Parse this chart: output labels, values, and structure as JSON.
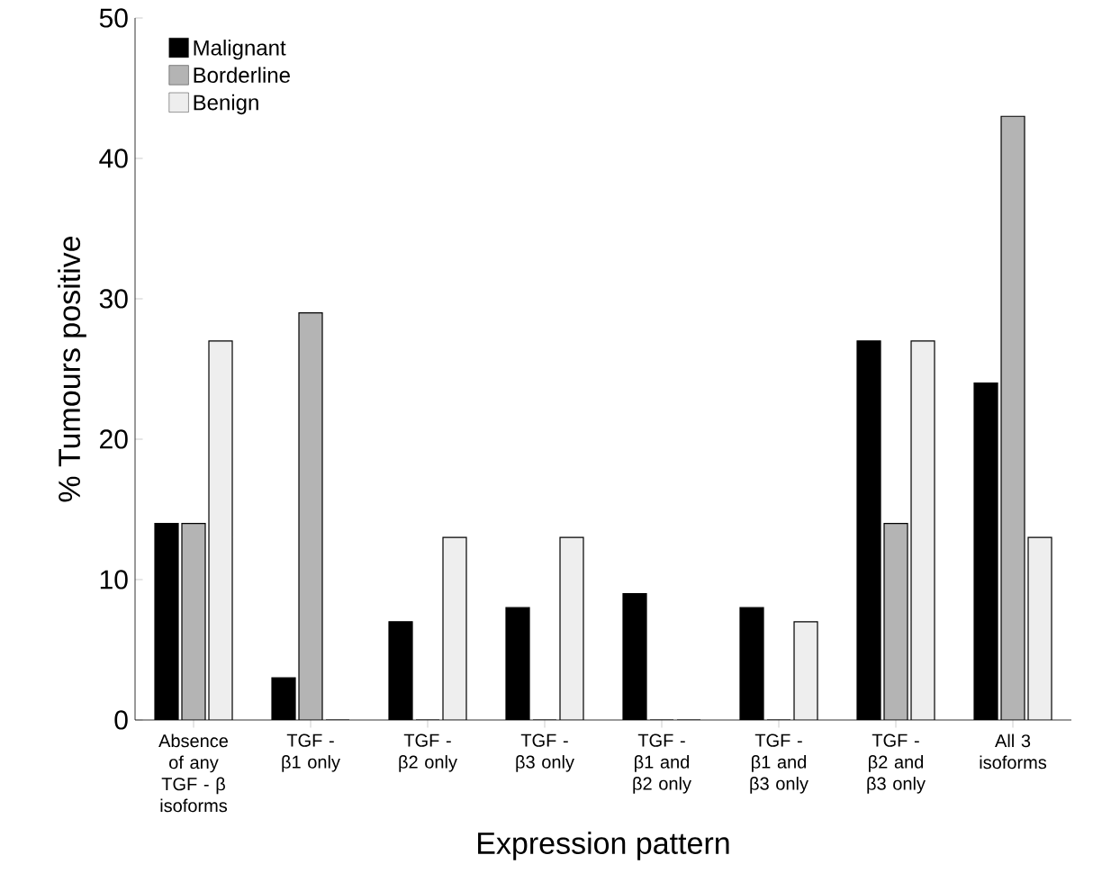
{
  "chart_data": {
    "type": "bar",
    "xlabel": "Expression pattern",
    "ylabel": "% Tumours positive",
    "categories": [
      "Absence of any TGF - β isoforms",
      "TGF - β1 only",
      "TGF - β2 only",
      "TGF - β3 only",
      "TGF - β1 and β2 only",
      "TGF - β1 and β3 only",
      "TGF - β2 and β3 only",
      "All 3 isoforms"
    ],
    "series": [
      {
        "name": "Malignant",
        "color": "#000000",
        "values": [
          14,
          3,
          7,
          8,
          9,
          8,
          27,
          24
        ]
      },
      {
        "name": "Borderline",
        "color": "#b4b4b4",
        "values": [
          14,
          29,
          0,
          0,
          0,
          0,
          14,
          43
        ]
      },
      {
        "name": "Benign",
        "color": "#eeeeee",
        "values": [
          27,
          0,
          13,
          13,
          0,
          7,
          27,
          13
        ]
      }
    ],
    "ylim": [
      0,
      50
    ],
    "yticks": [
      0,
      10,
      20,
      30,
      40,
      50
    ],
    "grid": false,
    "legend": "top left"
  }
}
